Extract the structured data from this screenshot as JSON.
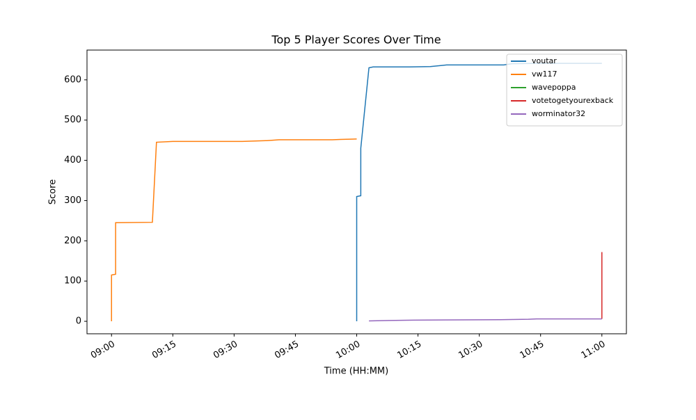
{
  "chart_data": {
    "type": "line",
    "title": "Top 5 Player Scores Over Time",
    "xlabel": "Time (HH:MM)",
    "ylabel": "Score",
    "xlim": [
      "08:54",
      "11:06"
    ],
    "xticks": [
      "09:00",
      "09:15",
      "09:30",
      "09:45",
      "10:00",
      "10:15",
      "10:30",
      "10:45",
      "11:00"
    ],
    "ylim": [
      -31,
      674
    ],
    "yticks": [
      0,
      100,
      200,
      300,
      400,
      500,
      600
    ],
    "legend": "upper right",
    "grid": false,
    "series": [
      {
        "name": "voutar",
        "color": "#1f77b4",
        "x": [
          "10:00",
          "10:00",
          "10:00",
          "10:01",
          "10:01",
          "10:01",
          "10:02",
          "10:03",
          "10:04",
          "10:13",
          "10:18",
          "10:22",
          "10:36",
          "10:38",
          "10:45",
          "11:00"
        ],
        "values": [
          0,
          170,
          310,
          312,
          365,
          430,
          530,
          630,
          632,
          632,
          633,
          637,
          637,
          640,
          641,
          641
        ]
      },
      {
        "name": "vw117",
        "color": "#ff7f0e",
        "x": [
          "09:00",
          "09:00",
          "09:01",
          "09:01",
          "09:01",
          "09:10",
          "09:11",
          "09:15",
          "09:32",
          "09:38",
          "09:41",
          "09:54",
          "09:56",
          "10:00"
        ],
        "values": [
          0,
          115,
          117,
          165,
          245,
          246,
          445,
          447,
          447,
          449,
          451,
          451,
          452,
          453
        ]
      },
      {
        "name": "wavepoppa",
        "color": "#2ca02c",
        "x": [],
        "values": []
      },
      {
        "name": "votetogetyourexback",
        "color": "#d62728",
        "x": [
          "11:00",
          "11:00"
        ],
        "values": [
          6,
          172
        ]
      },
      {
        "name": "worminator32",
        "color": "#9467bd",
        "x": [
          "10:03",
          "10:08",
          "10:14",
          "10:35",
          "10:42",
          "10:44",
          "11:00"
        ],
        "values": [
          1,
          2,
          3,
          4,
          5,
          6,
          6
        ]
      }
    ]
  }
}
